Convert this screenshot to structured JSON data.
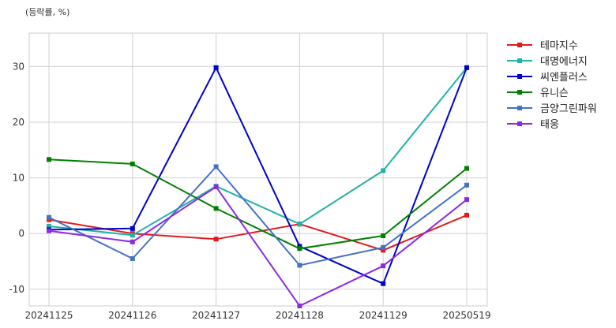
{
  "chart_data": {
    "type": "line",
    "unit_label": "(등락률, %)",
    "x": [
      "20241125",
      "20241126",
      "20241127",
      "20241128",
      "20241129",
      "20250519"
    ],
    "ylim": [
      -13,
      36
    ],
    "yticks": [
      -10,
      0,
      10,
      20,
      30
    ],
    "grid": true,
    "legend_position": "right",
    "series": [
      {
        "name": "테마지수",
        "color": "#e31a1c",
        "values": [
          2.5,
          0.0,
          -1.0,
          1.7,
          -3.0,
          3.3
        ]
      },
      {
        "name": "대명에너지",
        "color": "#20b2aa",
        "values": [
          1.3,
          -0.3,
          8.5,
          1.7,
          11.3,
          29.8
        ]
      },
      {
        "name": "씨엔플러스",
        "color": "#0000cd",
        "values": [
          0.7,
          0.9,
          29.8,
          -2.3,
          -9.0,
          29.8
        ]
      },
      {
        "name": "유니슨",
        "color": "#008000",
        "values": [
          13.3,
          12.5,
          4.5,
          -2.7,
          -0.4,
          11.7
        ]
      },
      {
        "name": "금양그린파워",
        "color": "#4472c4",
        "values": [
          2.9,
          -4.5,
          12.0,
          -5.7,
          -2.5,
          8.7
        ]
      },
      {
        "name": "태웅",
        "color": "#8a2be2",
        "values": [
          0.5,
          -1.5,
          8.4,
          -13.0,
          -5.8,
          6.1
        ]
      }
    ]
  }
}
